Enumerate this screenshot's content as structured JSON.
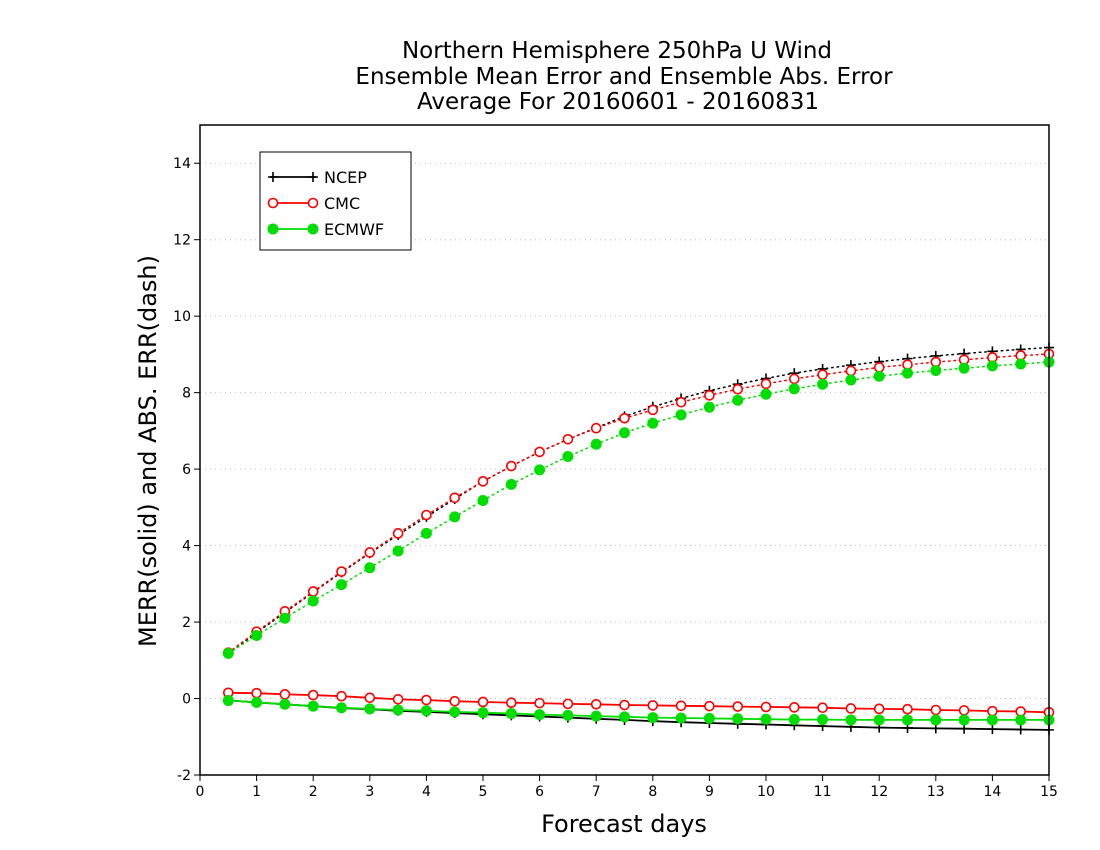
{
  "chart_data": {
    "type": "line",
    "title_lines": [
      "Northern Hemisphere 250hPa U Wind",
      "Ensemble Mean Error and Ensemble Abs. Error",
      "Average For 20160601 - 20160831"
    ],
    "xlabel": "Forecast days",
    "ylabel": "MERR(solid) and ABS. ERR(dash)",
    "xlim": [
      0,
      15
    ],
    "ylim": [
      -2,
      15
    ],
    "x_ticks": [
      "0",
      "1",
      "2",
      "3",
      "4",
      "5",
      "6",
      "7",
      "8",
      "9",
      "10",
      "11",
      "12",
      "13",
      "14",
      "15"
    ],
    "y_ticks": [
      "-2",
      "0",
      "2",
      "4",
      "6",
      "8",
      "10",
      "12",
      "14"
    ],
    "grid": "horizontal dotted",
    "legend_position": "top-left",
    "x": [
      0.5,
      1,
      1.5,
      2,
      2.5,
      3,
      3.5,
      4,
      4.5,
      5,
      5.5,
      6,
      6.5,
      7,
      7.5,
      8,
      8.5,
      9,
      9.5,
      10,
      10.5,
      11,
      11.5,
      12,
      12.5,
      13,
      13.5,
      14,
      14.5,
      15
    ],
    "series": [
      {
        "name": "NCEP",
        "color": "#000000",
        "marker": "plus",
        "abs_error": [
          1.18,
          1.72,
          2.25,
          2.78,
          3.3,
          3.8,
          4.28,
          4.75,
          5.22,
          5.68,
          6.08,
          6.45,
          6.78,
          7.08,
          7.38,
          7.63,
          7.85,
          8.05,
          8.22,
          8.37,
          8.51,
          8.62,
          8.72,
          8.81,
          8.89,
          8.96,
          9.02,
          9.08,
          9.13,
          9.18
        ],
        "mean_error": [
          -0.05,
          -0.1,
          -0.15,
          -0.2,
          -0.25,
          -0.28,
          -0.32,
          -0.35,
          -0.38,
          -0.41,
          -0.44,
          -0.47,
          -0.5,
          -0.53,
          -0.56,
          -0.59,
          -0.62,
          -0.64,
          -0.66,
          -0.68,
          -0.7,
          -0.72,
          -0.74,
          -0.76,
          -0.77,
          -0.78,
          -0.79,
          -0.8,
          -0.81,
          -0.82
        ]
      },
      {
        "name": "CMC",
        "color": "#ff0000",
        "marker": "open-circle",
        "abs_error": [
          1.2,
          1.75,
          2.28,
          2.8,
          3.32,
          3.82,
          4.32,
          4.8,
          5.25,
          5.68,
          6.08,
          6.45,
          6.78,
          7.07,
          7.33,
          7.55,
          7.75,
          7.93,
          8.09,
          8.23,
          8.36,
          8.47,
          8.57,
          8.66,
          8.73,
          8.8,
          8.86,
          8.92,
          8.97,
          9.01
        ],
        "mean_error": [
          0.15,
          0.14,
          0.11,
          0.09,
          0.06,
          0.02,
          -0.02,
          -0.04,
          -0.07,
          -0.09,
          -0.11,
          -0.12,
          -0.14,
          -0.15,
          -0.17,
          -0.18,
          -0.19,
          -0.2,
          -0.21,
          -0.22,
          -0.23,
          -0.24,
          -0.26,
          -0.27,
          -0.28,
          -0.3,
          -0.31,
          -0.33,
          -0.34,
          -0.36
        ]
      },
      {
        "name": "ECMWF",
        "color": "#00dd00",
        "marker": "filled-circle",
        "abs_error": [
          1.18,
          1.65,
          2.1,
          2.55,
          2.98,
          3.42,
          3.86,
          4.32,
          4.75,
          5.18,
          5.6,
          5.98,
          6.33,
          6.65,
          6.95,
          7.2,
          7.42,
          7.62,
          7.8,
          7.96,
          8.1,
          8.22,
          8.33,
          8.43,
          8.51,
          8.58,
          8.64,
          8.7,
          8.75,
          8.8
        ],
        "mean_error": [
          -0.05,
          -0.1,
          -0.15,
          -0.2,
          -0.24,
          -0.27,
          -0.3,
          -0.32,
          -0.35,
          -0.37,
          -0.39,
          -0.42,
          -0.44,
          -0.46,
          -0.48,
          -0.5,
          -0.51,
          -0.52,
          -0.53,
          -0.54,
          -0.55,
          -0.55,
          -0.56,
          -0.56,
          -0.56,
          -0.56,
          -0.56,
          -0.56,
          -0.56,
          -0.56
        ]
      }
    ]
  }
}
